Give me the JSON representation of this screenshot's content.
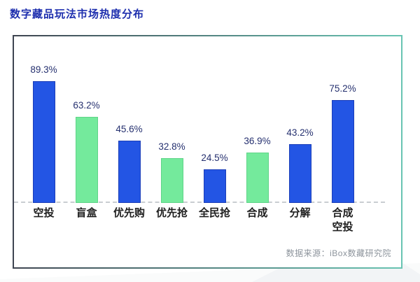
{
  "page": {
    "title": "数字藏品玩法市场热度分布"
  },
  "chart_data": {
    "type": "bar",
    "title": "数字藏品玩法市场热度分布",
    "categories": [
      "空投",
      "盲盒",
      "优先购",
      "优先抢",
      "全民抢",
      "合成",
      "分解",
      "合成空投"
    ],
    "categories_display": [
      "空投",
      "盲盒",
      "优先购",
      "优先抢",
      "全民抢",
      "合成",
      "分解",
      "合成\n空投"
    ],
    "values": [
      89.3,
      63.2,
      45.6,
      32.8,
      24.5,
      36.9,
      43.2,
      75.2
    ],
    "value_labels": [
      "89.3%",
      "63.2%",
      "45.6%",
      "32.8%",
      "24.5%",
      "36.9%",
      "43.2%",
      "75.2%"
    ],
    "color_keys": [
      "blue",
      "green",
      "blue",
      "green",
      "blue",
      "green",
      "blue",
      "blue"
    ],
    "palette": {
      "blue": {
        "fill": "#2355E4",
        "border": "#1B3EB8"
      },
      "green": {
        "fill": "#74EA9C",
        "border": "#5FD488"
      }
    },
    "ylim": [
      0,
      100
    ],
    "grid": false,
    "legend": false,
    "xlabel": "",
    "ylabel": "",
    "source": "数据来源：iBox数藏研究院"
  },
  "colors": {
    "title": "#1E2FAE",
    "value_label": "#25306F",
    "category_label": "#1F1F1F",
    "source_text": "#8D949C",
    "panel_border_left": "#3F4551",
    "panel_border_right": "#68C4B2",
    "baseline_dash": "#C9CDD1",
    "bar_blue": "#2355E4",
    "bar_green": "#74EA9C"
  }
}
